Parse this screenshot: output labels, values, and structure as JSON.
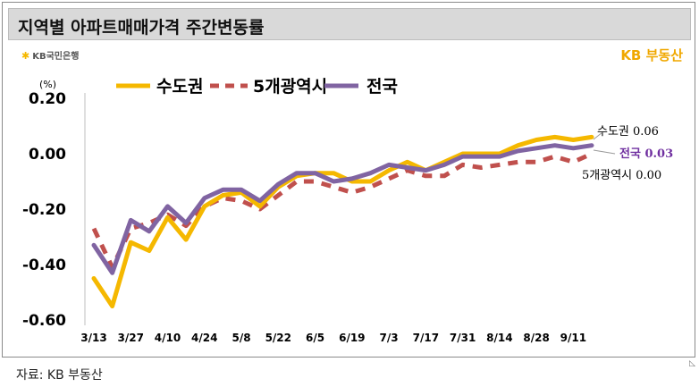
{
  "header": {
    "title": "지역별 아파트매매가격 주간변동률",
    "left_logo": "KB국민은행",
    "right_logo": "KB 부동산"
  },
  "footer": {
    "source": "자료: KB 부동산"
  },
  "chart_data": {
    "type": "line",
    "ylabel": "(%)",
    "ylim": [
      -0.6,
      0.2
    ],
    "yticks": [
      {
        "value": 0.2,
        "label": "0.20"
      },
      {
        "value": 0.0,
        "label": "0.00"
      },
      {
        "value": -0.2,
        "label": "-0.20"
      },
      {
        "value": -0.4,
        "label": "-0.40"
      },
      {
        "value": -0.6,
        "label": "-0.60"
      }
    ],
    "x_tick_labels": [
      "3/13",
      "3/27",
      "4/10",
      "4/24",
      "5/8",
      "5/22",
      "6/5",
      "6/19",
      "7/3",
      "7/17",
      "7/31",
      "8/14",
      "8/28",
      "9/11"
    ],
    "series": [
      {
        "name": "수도권",
        "color": "#f5b800",
        "dash": "solid",
        "values": [
          -0.45,
          -0.55,
          -0.32,
          -0.35,
          -0.23,
          -0.31,
          -0.19,
          -0.15,
          -0.14,
          -0.19,
          -0.12,
          -0.08,
          -0.07,
          -0.07,
          -0.1,
          -0.1,
          -0.06,
          -0.03,
          -0.06,
          -0.03,
          0.0,
          0.0,
          0.0,
          0.03,
          0.05,
          0.06,
          0.05,
          0.06
        ],
        "end_label": "수도권 0.06",
        "end_label_color": "#000000"
      },
      {
        "name": "5개광역시",
        "color": "#c0504d",
        "dash": "dashed",
        "values": [
          -0.27,
          -0.41,
          -0.27,
          -0.25,
          -0.22,
          -0.26,
          -0.19,
          -0.16,
          -0.17,
          -0.2,
          -0.15,
          -0.1,
          -0.1,
          -0.12,
          -0.14,
          -0.12,
          -0.09,
          -0.06,
          -0.08,
          -0.08,
          -0.04,
          -0.05,
          -0.04,
          -0.03,
          -0.03,
          -0.01,
          -0.03,
          0.0
        ],
        "end_label": "5개광역시 0.00",
        "end_label_color": "#000000"
      },
      {
        "name": "전국",
        "color": "#8064a2",
        "dash": "solid",
        "values": [
          -0.33,
          -0.43,
          -0.24,
          -0.28,
          -0.19,
          -0.25,
          -0.16,
          -0.13,
          -0.13,
          -0.17,
          -0.11,
          -0.07,
          -0.07,
          -0.1,
          -0.09,
          -0.07,
          -0.04,
          -0.05,
          -0.06,
          -0.04,
          -0.01,
          -0.01,
          -0.01,
          0.01,
          0.02,
          0.03,
          0.02,
          0.03
        ],
        "end_label": "전국 0.03",
        "end_label_color": "#7030a0"
      }
    ]
  }
}
